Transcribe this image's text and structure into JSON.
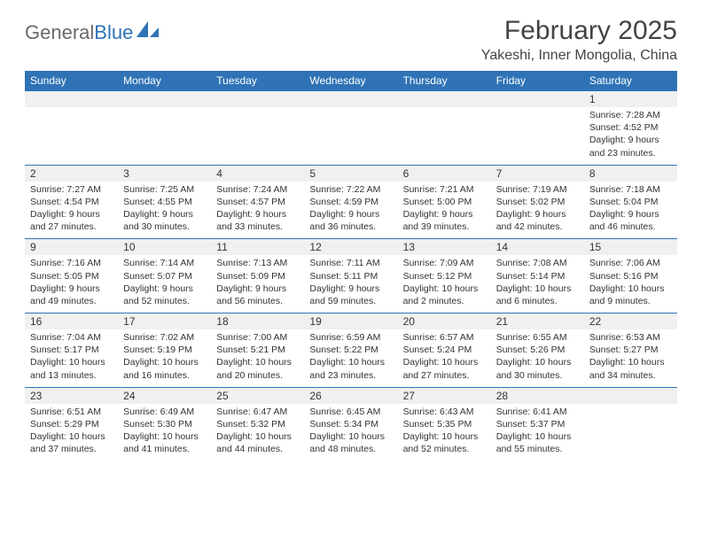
{
  "logo": {
    "text_gray": "General",
    "text_blue": "Blue"
  },
  "header": {
    "month_title": "February 2025",
    "location": "Yakeshi, Inner Mongolia, China"
  },
  "colors": {
    "header_bar": "#2f73b6",
    "daynum_bg": "#f0f0f0",
    "text": "#333333",
    "logo_gray": "#6a6a6a",
    "logo_blue": "#2f73b6"
  },
  "weekdays": [
    "Sunday",
    "Monday",
    "Tuesday",
    "Wednesday",
    "Thursday",
    "Friday",
    "Saturday"
  ],
  "weeks": [
    [
      null,
      null,
      null,
      null,
      null,
      null,
      {
        "n": "1",
        "sunrise": "7:28 AM",
        "sunset": "4:52 PM",
        "dl": "9 hours and 23 minutes."
      }
    ],
    [
      {
        "n": "2",
        "sunrise": "7:27 AM",
        "sunset": "4:54 PM",
        "dl": "9 hours and 27 minutes."
      },
      {
        "n": "3",
        "sunrise": "7:25 AM",
        "sunset": "4:55 PM",
        "dl": "9 hours and 30 minutes."
      },
      {
        "n": "4",
        "sunrise": "7:24 AM",
        "sunset": "4:57 PM",
        "dl": "9 hours and 33 minutes."
      },
      {
        "n": "5",
        "sunrise": "7:22 AM",
        "sunset": "4:59 PM",
        "dl": "9 hours and 36 minutes."
      },
      {
        "n": "6",
        "sunrise": "7:21 AM",
        "sunset": "5:00 PM",
        "dl": "9 hours and 39 minutes."
      },
      {
        "n": "7",
        "sunrise": "7:19 AM",
        "sunset": "5:02 PM",
        "dl": "9 hours and 42 minutes."
      },
      {
        "n": "8",
        "sunrise": "7:18 AM",
        "sunset": "5:04 PM",
        "dl": "9 hours and 46 minutes."
      }
    ],
    [
      {
        "n": "9",
        "sunrise": "7:16 AM",
        "sunset": "5:05 PM",
        "dl": "9 hours and 49 minutes."
      },
      {
        "n": "10",
        "sunrise": "7:14 AM",
        "sunset": "5:07 PM",
        "dl": "9 hours and 52 minutes."
      },
      {
        "n": "11",
        "sunrise": "7:13 AM",
        "sunset": "5:09 PM",
        "dl": "9 hours and 56 minutes."
      },
      {
        "n": "12",
        "sunrise": "7:11 AM",
        "sunset": "5:11 PM",
        "dl": "9 hours and 59 minutes."
      },
      {
        "n": "13",
        "sunrise": "7:09 AM",
        "sunset": "5:12 PM",
        "dl": "10 hours and 2 minutes."
      },
      {
        "n": "14",
        "sunrise": "7:08 AM",
        "sunset": "5:14 PM",
        "dl": "10 hours and 6 minutes."
      },
      {
        "n": "15",
        "sunrise": "7:06 AM",
        "sunset": "5:16 PM",
        "dl": "10 hours and 9 minutes."
      }
    ],
    [
      {
        "n": "16",
        "sunrise": "7:04 AM",
        "sunset": "5:17 PM",
        "dl": "10 hours and 13 minutes."
      },
      {
        "n": "17",
        "sunrise": "7:02 AM",
        "sunset": "5:19 PM",
        "dl": "10 hours and 16 minutes."
      },
      {
        "n": "18",
        "sunrise": "7:00 AM",
        "sunset": "5:21 PM",
        "dl": "10 hours and 20 minutes."
      },
      {
        "n": "19",
        "sunrise": "6:59 AM",
        "sunset": "5:22 PM",
        "dl": "10 hours and 23 minutes."
      },
      {
        "n": "20",
        "sunrise": "6:57 AM",
        "sunset": "5:24 PM",
        "dl": "10 hours and 27 minutes."
      },
      {
        "n": "21",
        "sunrise": "6:55 AM",
        "sunset": "5:26 PM",
        "dl": "10 hours and 30 minutes."
      },
      {
        "n": "22",
        "sunrise": "6:53 AM",
        "sunset": "5:27 PM",
        "dl": "10 hours and 34 minutes."
      }
    ],
    [
      {
        "n": "23",
        "sunrise": "6:51 AM",
        "sunset": "5:29 PM",
        "dl": "10 hours and 37 minutes."
      },
      {
        "n": "24",
        "sunrise": "6:49 AM",
        "sunset": "5:30 PM",
        "dl": "10 hours and 41 minutes."
      },
      {
        "n": "25",
        "sunrise": "6:47 AM",
        "sunset": "5:32 PM",
        "dl": "10 hours and 44 minutes."
      },
      {
        "n": "26",
        "sunrise": "6:45 AM",
        "sunset": "5:34 PM",
        "dl": "10 hours and 48 minutes."
      },
      {
        "n": "27",
        "sunrise": "6:43 AM",
        "sunset": "5:35 PM",
        "dl": "10 hours and 52 minutes."
      },
      {
        "n": "28",
        "sunrise": "6:41 AM",
        "sunset": "5:37 PM",
        "dl": "10 hours and 55 minutes."
      },
      null
    ]
  ],
  "labels": {
    "sunrise": "Sunrise:",
    "sunset": "Sunset:",
    "daylight": "Daylight:"
  }
}
